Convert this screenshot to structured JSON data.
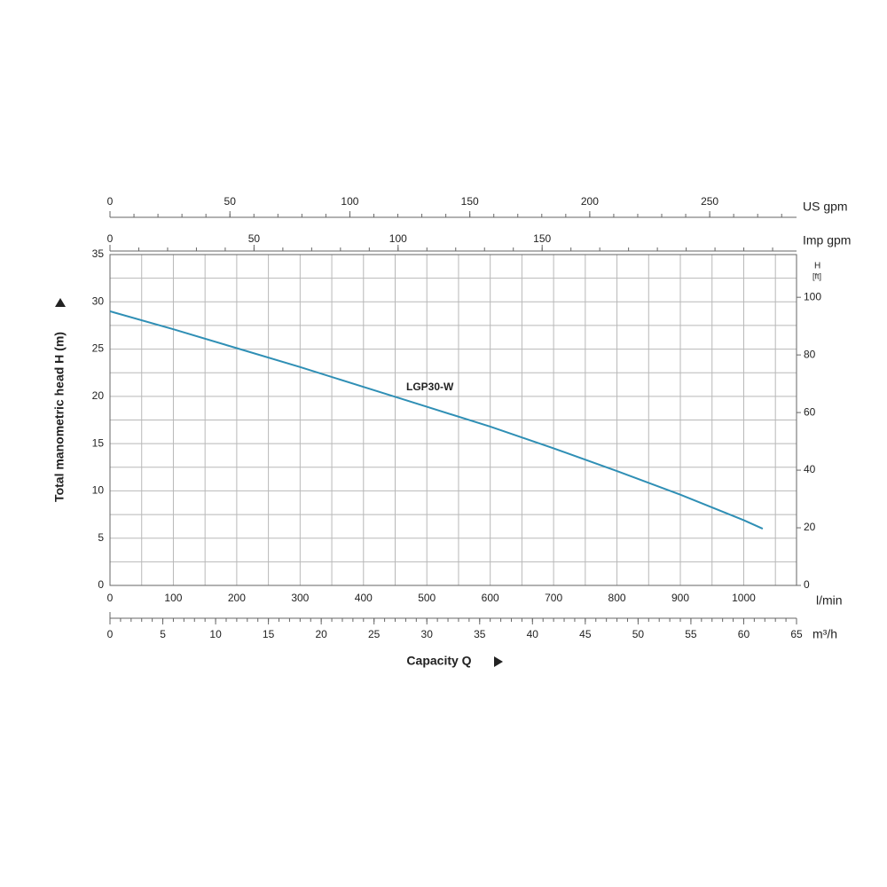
{
  "chart_data": {
    "type": "line",
    "ylabel": "Total manometric head H (m)",
    "xlabel": "Capacity Q",
    "x_unit": "l/min",
    "x": [
      0,
      100,
      200,
      300,
      400,
      500,
      600,
      700,
      800,
      900,
      1000,
      1030
    ],
    "series": [
      {
        "name": "LGP30-W",
        "color": "#2f8fb5",
        "values": [
          29,
          27.1,
          25.1,
          23.1,
          21.0,
          18.9,
          16.8,
          14.5,
          12.1,
          9.6,
          6.9,
          6.0
        ]
      }
    ],
    "xlim": [
      0,
      1083.33
    ],
    "xticks": [
      0,
      100,
      200,
      300,
      400,
      500,
      600,
      700,
      800,
      900,
      1000
    ],
    "ylim": [
      0,
      35
    ],
    "yticks": [
      0,
      5,
      10,
      15,
      20,
      25,
      30,
      35
    ],
    "y2label": "H",
    "y2unit": "[ft]",
    "y2lim": [
      0,
      114.83
    ],
    "y2ticks": [
      0,
      20,
      40,
      60,
      80,
      100
    ],
    "bottom_axis": {
      "label": "m³/h",
      "xlim": [
        0,
        65
      ],
      "xticks": [
        0,
        5,
        10,
        15,
        20,
        25,
        30,
        35,
        40,
        45,
        50,
        55,
        60,
        65
      ]
    },
    "top_axes": [
      {
        "label": "US gpm",
        "xlim": [
          0,
          286.2
        ],
        "xticks": [
          0,
          50,
          100,
          150,
          200,
          250
        ]
      },
      {
        "label": "Imp gpm",
        "xlim": [
          0,
          238.3
        ],
        "xticks": [
          0,
          50,
          100,
          150
        ]
      }
    ],
    "grid": true
  }
}
